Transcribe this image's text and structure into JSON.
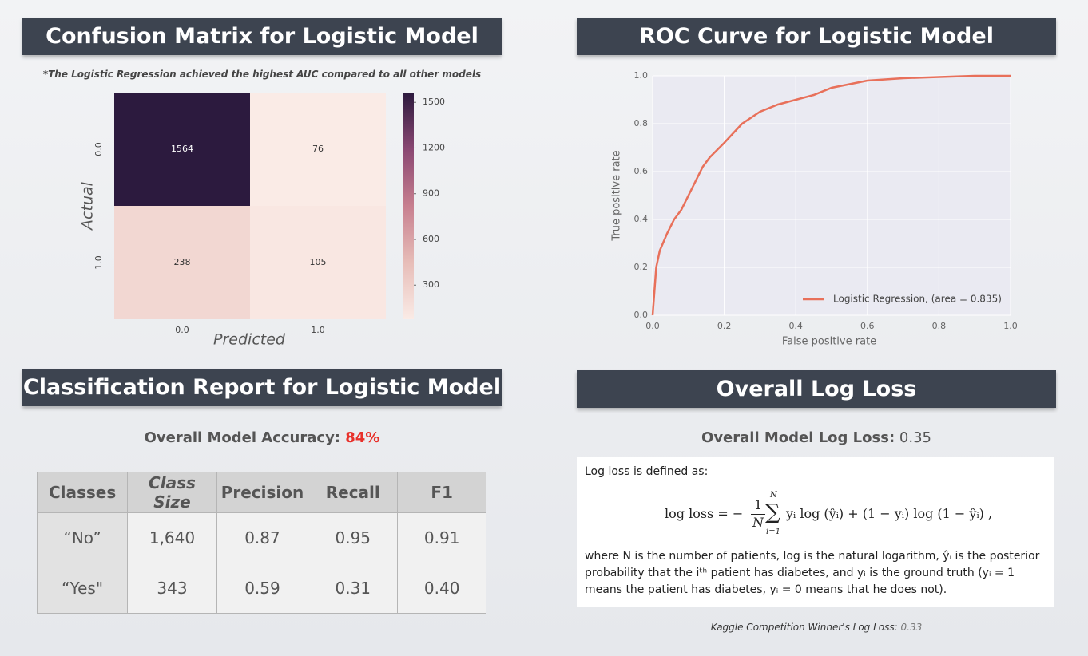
{
  "panels": {
    "confusion": {
      "title": "Confusion Matrix for Logistic Model",
      "note": "*The Logistic Regression achieved the highest AUC compared to all other models"
    },
    "roc": {
      "title": "ROC Curve for Logistic Model"
    },
    "report": {
      "title": "Classification Report for Logistic Model",
      "accuracy_label": "Overall Model Accuracy:",
      "accuracy": "84%"
    },
    "logloss": {
      "title": "Overall Log Loss",
      "label": "Overall Model Log Loss:",
      "value": "0.35",
      "intro": "Log loss is defined as:",
      "formula": {
        "lhs": "log loss = −",
        "num": "1",
        "den": "N",
        "sum": "∑",
        "sum_top": "N",
        "sum_bottom": "i=1",
        "rhs": "yᵢ log (ŷᵢ) + (1 − yᵢ) log (1 − ŷᵢ) ,"
      },
      "explanation": "where N is the number of patients, log is the natural logarithm, ŷᵢ is the posterior probability that the iᵗʰ patient has diabetes, and yᵢ is the ground truth (yᵢ = 1 means the patient has diabetes, yᵢ = 0 means that he does not).",
      "kaggle_label": "Kaggle Competition Winner's Log Loss:",
      "kaggle_value": "0.33"
    }
  },
  "table": {
    "columns": [
      "Classes",
      "Class Size",
      "Precision",
      "Recall",
      "F1"
    ],
    "rows": [
      [
        "“No”",
        "1,640",
        "0.87",
        "0.95",
        "0.91"
      ],
      [
        "“Yes\"",
        "343",
        "0.59",
        "0.31",
        "0.40"
      ]
    ]
  },
  "chart_data": [
    {
      "type": "heatmap",
      "x_label": "Predicted",
      "y_label": "Actual",
      "x_categories": [
        "0.0",
        "1.0"
      ],
      "y_categories": [
        "0.0",
        "1.0"
      ],
      "values": [
        [
          1564,
          76
        ],
        [
          238,
          105
        ]
      ],
      "clim": [
        76,
        1564
      ],
      "cticks": [
        300,
        600,
        900,
        1200,
        1500
      ],
      "colormap": [
        "#faebe6",
        "#e7bdb8",
        "#c77f8f",
        "#8a4772",
        "#2c1a3e"
      ]
    },
    {
      "type": "line",
      "x_label": "False positive rate",
      "y_label": "True positive rate",
      "x": [
        0,
        0.005,
        0.01,
        0.02,
        0.04,
        0.06,
        0.08,
        0.1,
        0.12,
        0.14,
        0.16,
        0.2,
        0.25,
        0.3,
        0.35,
        0.4,
        0.45,
        0.5,
        0.6,
        0.7,
        0.8,
        0.9,
        1.0
      ],
      "series": [
        {
          "name": "Logistic Regression, (area = 0.835)",
          "color": "#e8705a",
          "values": [
            0,
            0.1,
            0.2,
            0.27,
            0.34,
            0.4,
            0.44,
            0.5,
            0.56,
            0.62,
            0.66,
            0.72,
            0.8,
            0.85,
            0.88,
            0.9,
            0.92,
            0.95,
            0.98,
            0.99,
            0.995,
            1,
            1
          ]
        }
      ],
      "xlim": [
        0,
        1
      ],
      "ylim": [
        0,
        1
      ],
      "xticks": [
        {
          "value": 0,
          "label": "0.0"
        },
        0.2,
        0.4,
        0.6,
        0.8,
        {
          "value": 1,
          "label": "1.0"
        }
      ],
      "yticks": [
        {
          "value": 0,
          "label": "0.0"
        },
        0.2,
        0.4,
        0.6,
        0.8,
        {
          "value": 1,
          "label": "1.0"
        }
      ],
      "grid": true,
      "legend": "lower right"
    }
  ]
}
